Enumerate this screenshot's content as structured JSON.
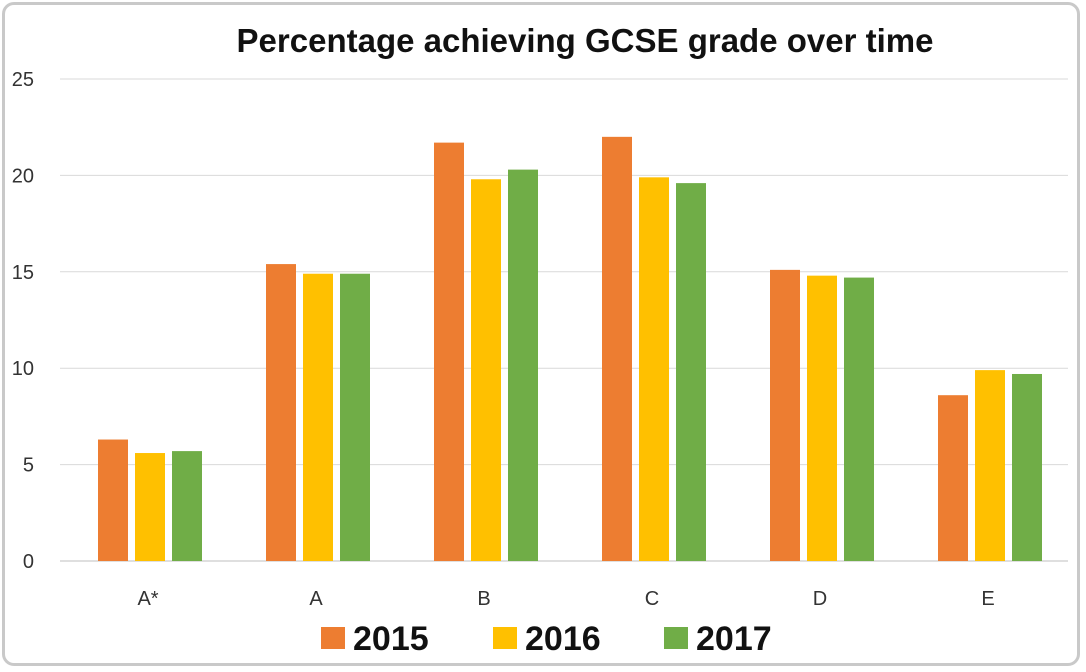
{
  "chart_data": {
    "type": "bar",
    "title": "Percentage achieving GCSE grade over time",
    "categories": [
      "A*",
      "A",
      "B",
      "C",
      "D",
      "E"
    ],
    "series": [
      {
        "name": "2015",
        "color": "#ED7D31",
        "values": [
          6.3,
          15.4,
          21.7,
          22.0,
          15.1,
          8.6
        ]
      },
      {
        "name": "2016",
        "color": "#FFC000",
        "values": [
          5.6,
          14.9,
          19.8,
          19.9,
          14.8,
          9.9
        ]
      },
      {
        "name": "2017",
        "color": "#70AD47",
        "values": [
          5.7,
          14.9,
          20.3,
          19.6,
          14.7,
          9.7
        ]
      }
    ],
    "ylim": [
      0,
      25
    ],
    "yticks": [
      "0",
      "5",
      "10",
      "15",
      "20",
      "25"
    ],
    "xlabel": "",
    "ylabel": "",
    "grid": true,
    "legend_position": "bottom"
  }
}
